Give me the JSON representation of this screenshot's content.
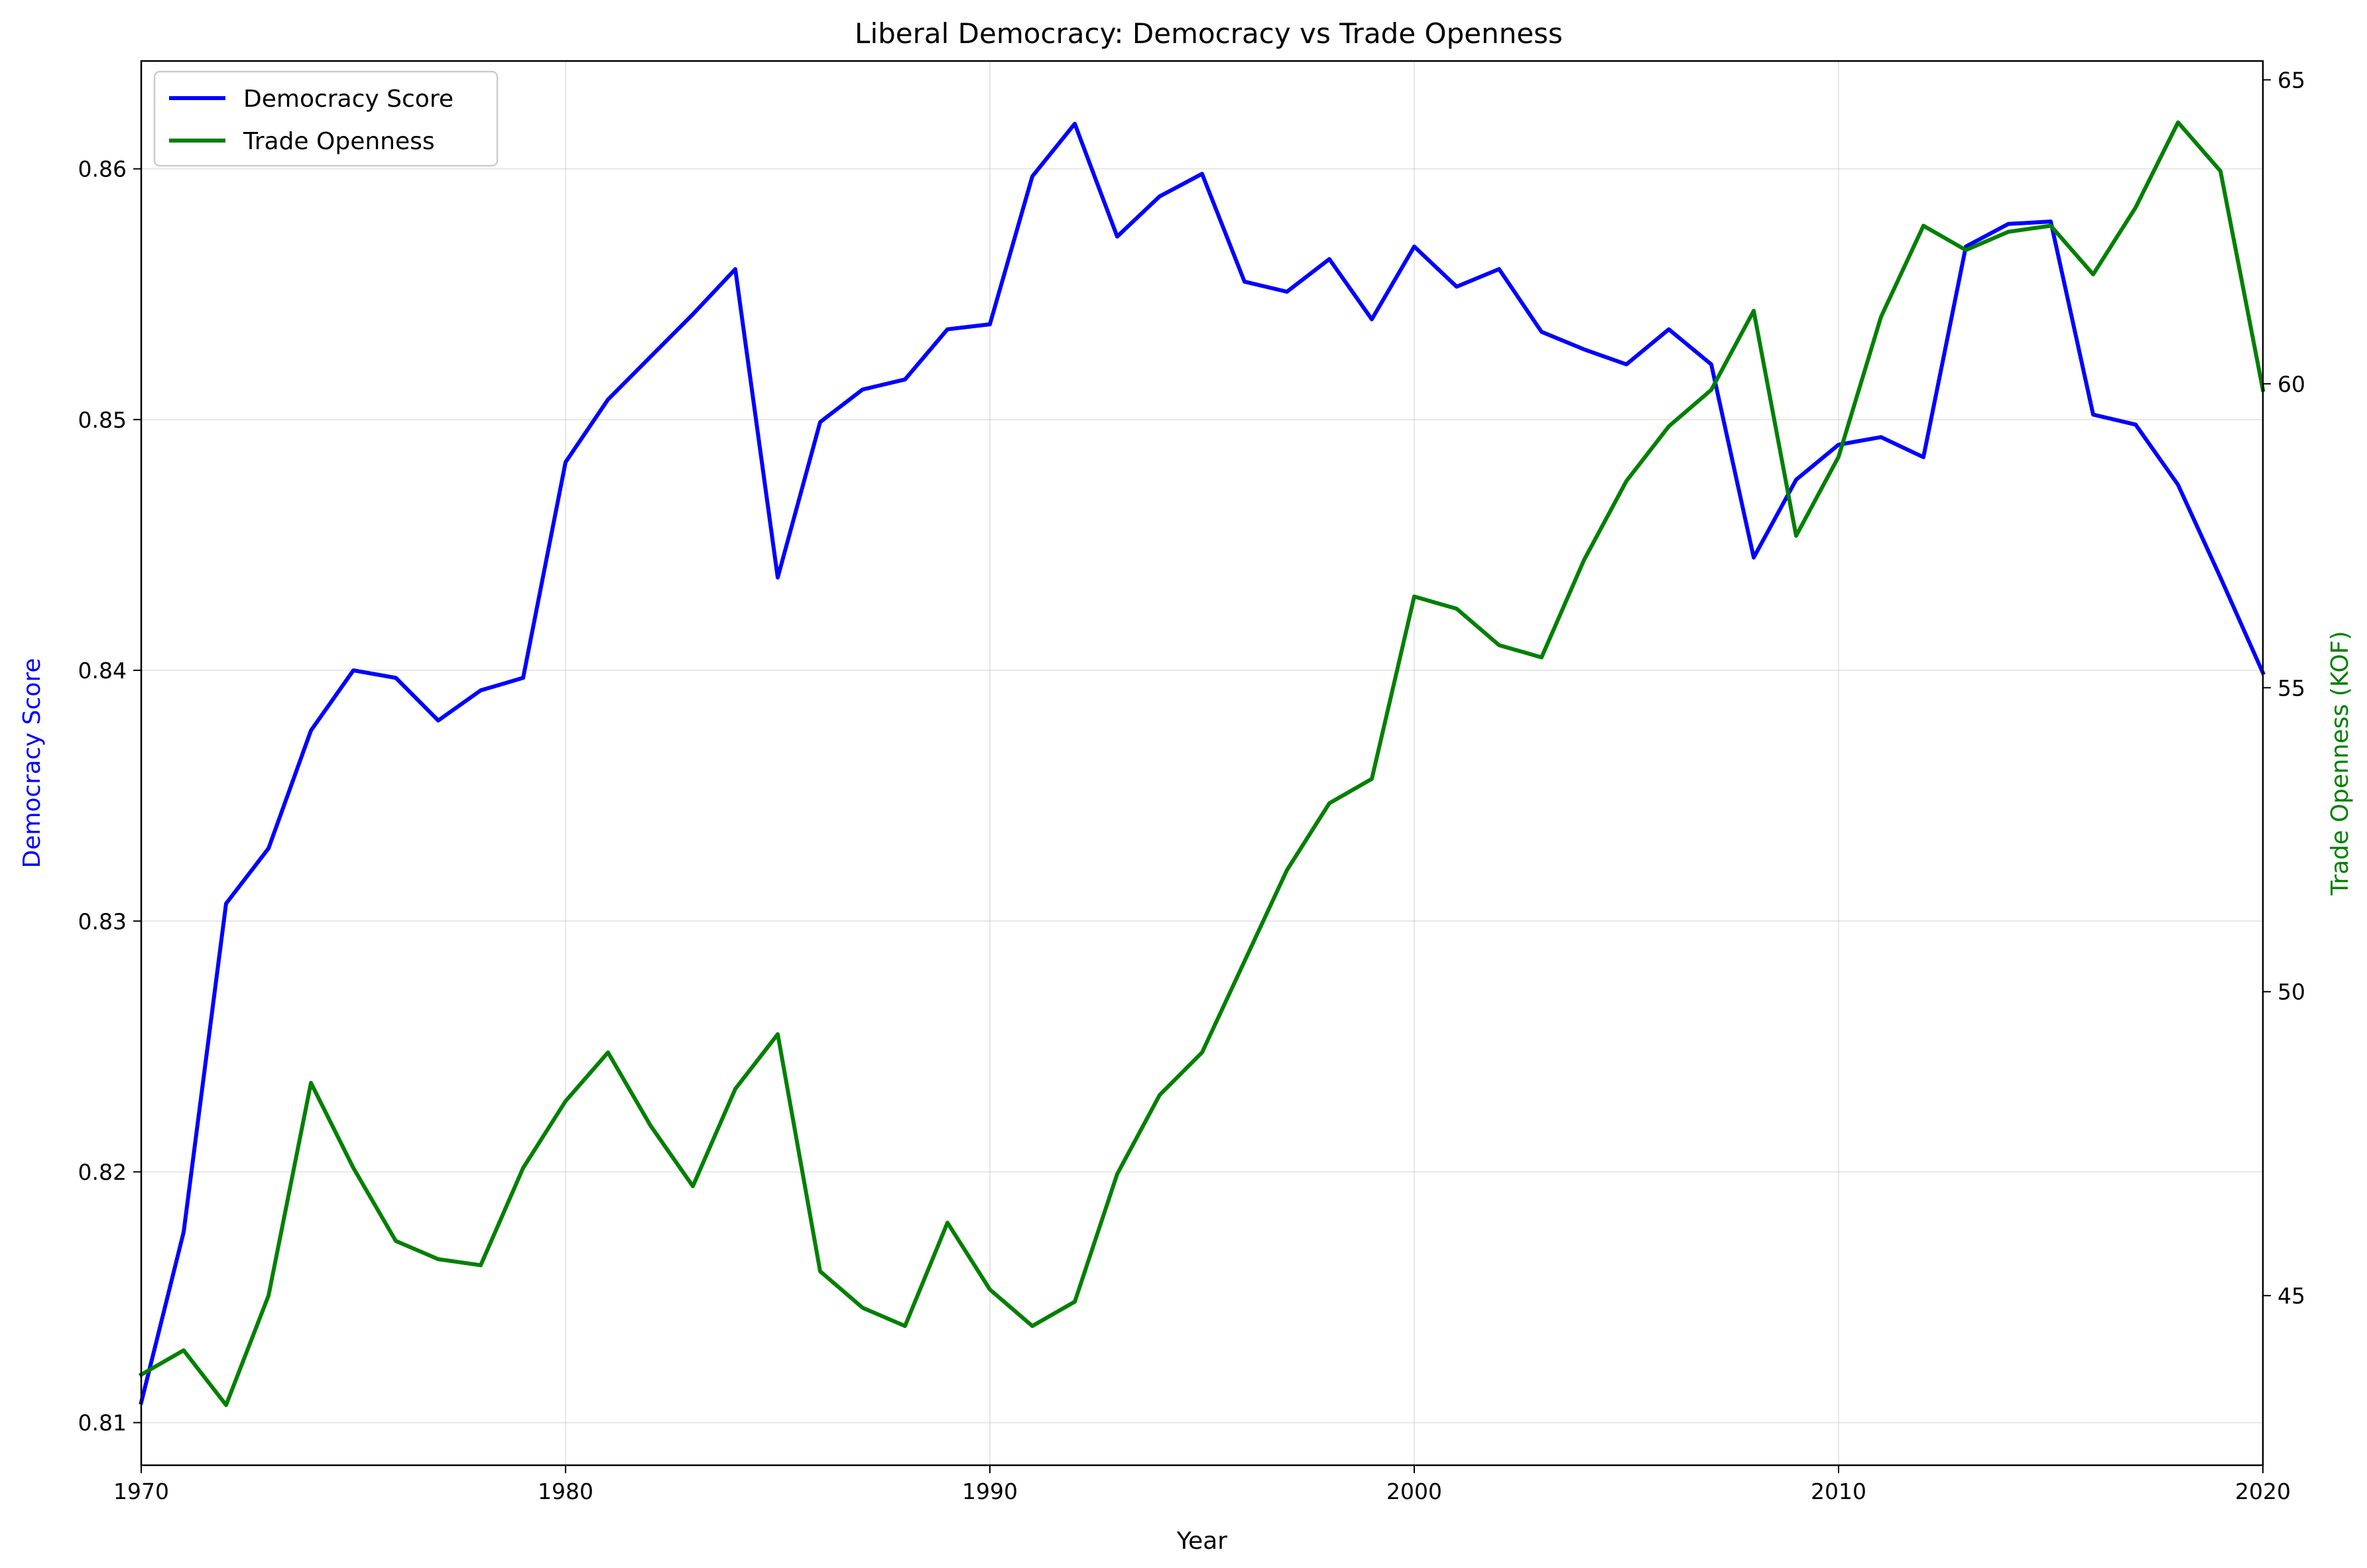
{
  "chart_data": {
    "type": "line",
    "title": "Liberal Democracy: Democracy vs Trade Openness",
    "xlabel": "Year",
    "xlim": [
      1970,
      2020
    ],
    "x_ticks": [
      1970,
      1980,
      1990,
      2000,
      2010,
      2020
    ],
    "grid": true,
    "legend_position": "top-left",
    "x": [
      1970,
      1971,
      1972,
      1973,
      1974,
      1975,
      1976,
      1977,
      1978,
      1979,
      1980,
      1981,
      1982,
      1983,
      1984,
      1985,
      1986,
      1987,
      1988,
      1989,
      1990,
      1991,
      1992,
      1993,
      1994,
      1995,
      1996,
      1997,
      1998,
      1999,
      2000,
      2001,
      2002,
      2003,
      2004,
      2005,
      2006,
      2007,
      2008,
      2009,
      2010,
      2011,
      2012,
      2013,
      2014,
      2015,
      2016,
      2017,
      2018,
      2019,
      2020
    ],
    "left_axis": {
      "label": "Democracy Score",
      "color": "#0000ff",
      "ylim": [
        0.8083,
        0.8643
      ],
      "ticks": [
        0.81,
        0.82,
        0.83,
        0.84,
        0.85,
        0.86
      ],
      "tick_labels": [
        "0.81",
        "0.82",
        "0.83",
        "0.84",
        "0.85",
        "0.86"
      ]
    },
    "right_axis": {
      "label": "Trade Openness (KOF)",
      "color": "#008000",
      "ylim": [
        42.21,
        65.31
      ],
      "ticks": [
        45,
        50,
        55,
        60,
        65
      ],
      "tick_labels": [
        "45",
        "50",
        "55",
        "60",
        "65"
      ]
    },
    "series": [
      {
        "name": "Democracy Score",
        "axis": "left",
        "color": "#0000ff",
        "values": [
          0.8108,
          0.8176,
          0.8307,
          0.8329,
          0.8376,
          0.84,
          0.8397,
          0.838,
          0.8392,
          0.8397,
          0.8483,
          0.8508,
          0.8525,
          0.8542,
          0.856,
          0.8437,
          0.8499,
          0.8512,
          0.8516,
          0.8536,
          0.8538,
          0.8597,
          0.8618,
          0.8573,
          0.8589,
          0.8598,
          0.8555,
          0.8551,
          0.8564,
          0.854,
          0.8569,
          0.8553,
          0.856,
          0.8535,
          0.8528,
          0.8522,
          0.8536,
          0.8522,
          0.8445,
          0.8476,
          0.849,
          0.8493,
          0.8485,
          0.8569,
          0.8578,
          0.8579,
          0.8502,
          0.8498,
          0.8474,
          0.8437,
          0.8399
        ]
      },
      {
        "name": "Trade Openness",
        "axis": "right",
        "color": "#008000",
        "values": [
          43.7,
          44.1,
          43.2,
          45.0,
          48.5,
          47.1,
          45.9,
          45.6,
          45.5,
          47.1,
          48.2,
          49.0,
          47.8,
          46.8,
          48.4,
          49.3,
          45.4,
          44.8,
          44.5,
          46.2,
          45.1,
          44.5,
          44.9,
          47.0,
          48.3,
          49.0,
          50.5,
          52.0,
          53.1,
          53.5,
          56.5,
          56.3,
          55.7,
          55.5,
          57.1,
          58.4,
          59.3,
          59.9,
          61.2,
          57.5,
          58.8,
          61.1,
          62.6,
          62.2,
          62.5,
          62.6,
          61.8,
          62.9,
          64.3,
          63.5,
          59.9
        ]
      }
    ]
  }
}
